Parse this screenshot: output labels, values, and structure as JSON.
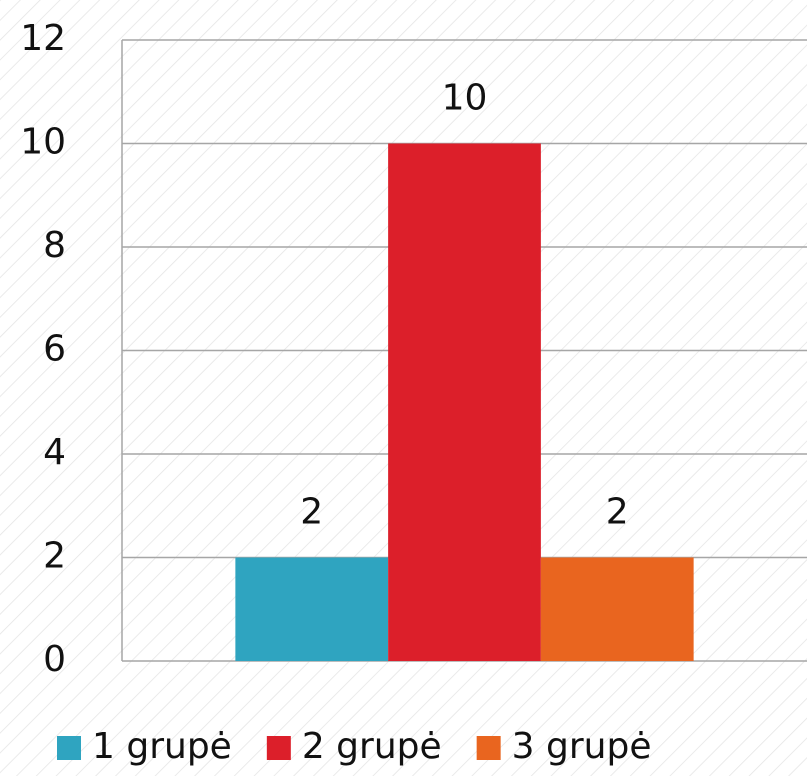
{
  "chart_data": {
    "type": "bar",
    "categories": [
      null
    ],
    "series": [
      {
        "name": "1 grupė",
        "color": "#2fa4c0",
        "values": [
          2
        ]
      },
      {
        "name": "2 grupė",
        "color": "#dc1f2a",
        "values": [
          10
        ]
      },
      {
        "name": "3 grupė",
        "color": "#e9651f",
        "values": [
          2
        ]
      }
    ],
    "ylim": [
      0,
      12
    ],
    "yticks": [
      0,
      2,
      4,
      6,
      8,
      10,
      12
    ],
    "grid": true,
    "legend": "bottom"
  }
}
